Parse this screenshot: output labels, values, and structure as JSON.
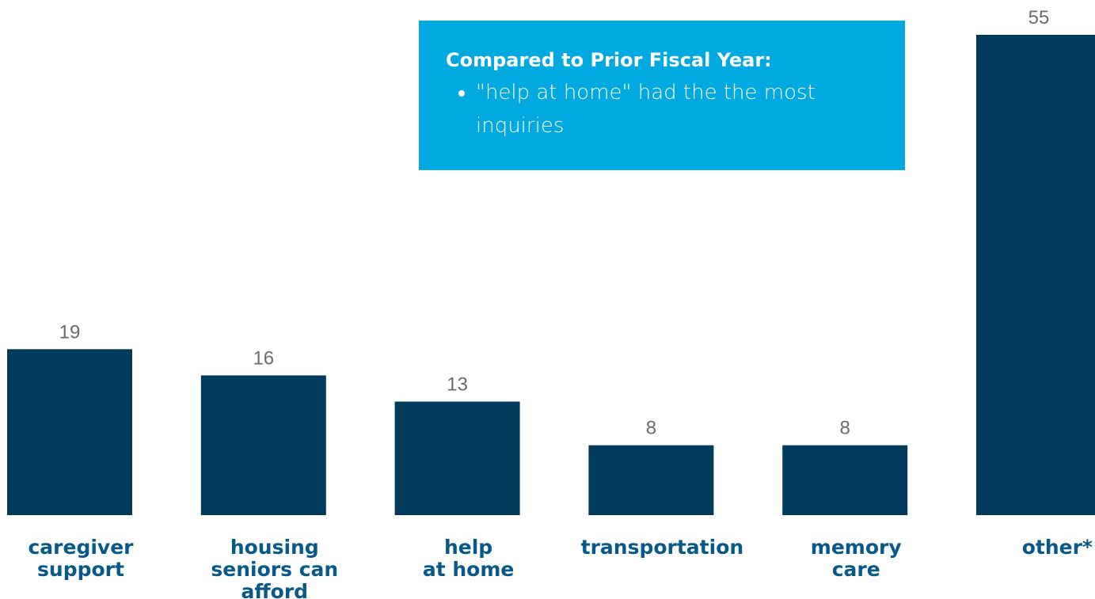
{
  "chart_data": {
    "type": "bar",
    "categories": [
      [
        "caregiver",
        "support"
      ],
      [
        "housing",
        "seniors can",
        "afford"
      ],
      [
        "help",
        "at home"
      ],
      [
        "transportation"
      ],
      [
        "memory",
        "care"
      ],
      [
        "other*"
      ]
    ],
    "values": [
      19,
      16,
      13,
      8,
      8,
      55
    ],
    "color": "#003a5c",
    "annotation": {
      "title": "Compared to Prior Fiscal Year:",
      "items": [
        "\"help at home\" had the the most inquiries"
      ]
    }
  }
}
